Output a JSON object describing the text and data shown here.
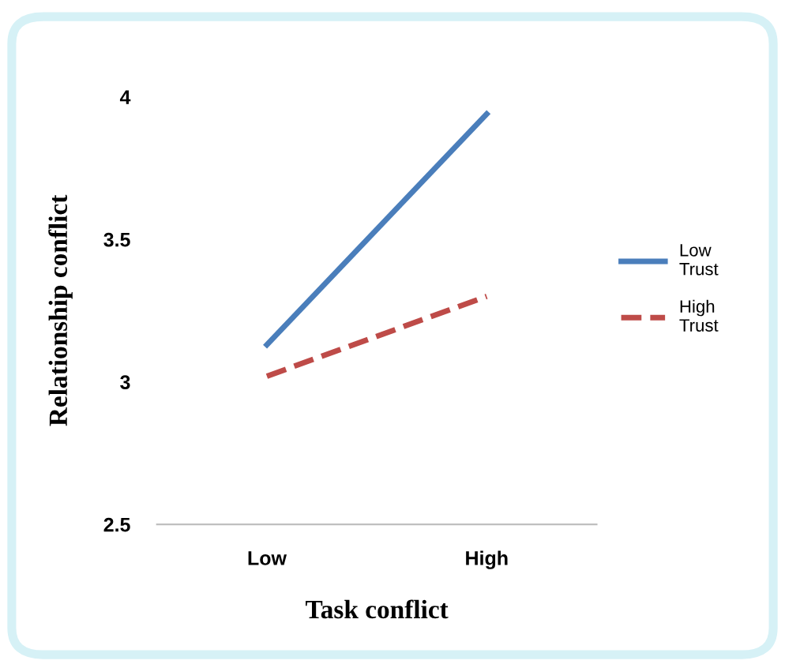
{
  "chart_data": {
    "type": "line",
    "xlabel": "Task conflict",
    "ylabel": "Relationship conflict",
    "categories": [
      "Low",
      "High"
    ],
    "series": [
      {
        "name": "Low Trust",
        "color": "#4a7ebb",
        "values": [
          3.13,
          3.94
        ],
        "line_style": "solid"
      },
      {
        "name": "High Trust",
        "color": "#be4b48",
        "values": [
          3.02,
          3.3
        ],
        "line_style": "dashed"
      }
    ],
    "ylim": [
      2.5,
      4
    ],
    "yticks": [
      2.5,
      3,
      3.5,
      4
    ],
    "grid": false,
    "legend": "right",
    "marker": "none"
  }
}
